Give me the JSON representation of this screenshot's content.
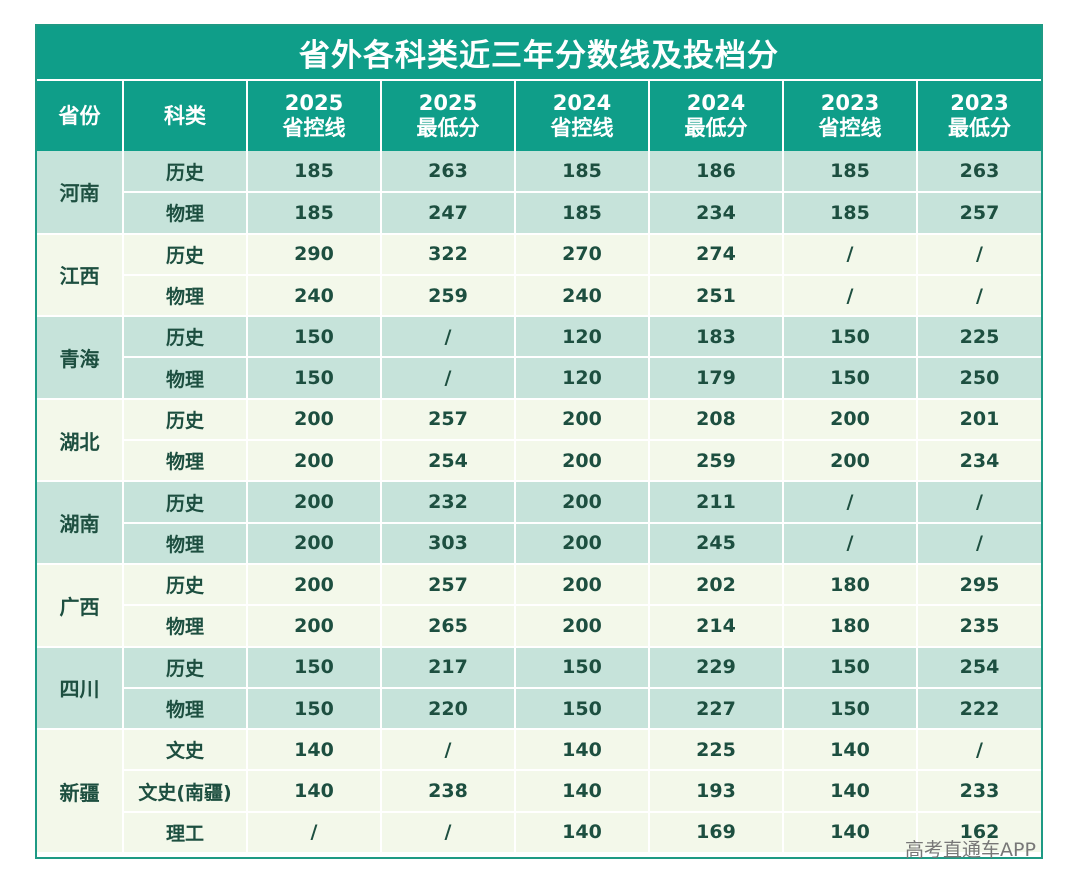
{
  "title": "省外各科类近三年分数线及投档分",
  "headers": [
    "省份",
    "科类",
    "2025\n省控线",
    "2025\n最低分",
    "2024\n省控线",
    "2024\n最低分",
    "2023\n省控线",
    "2023\n最低分"
  ],
  "groups": [
    {
      "province": "河南",
      "rows": [
        {
          "subject": "历史",
          "values": [
            "185",
            "263",
            "185",
            "186",
            "185",
            "263"
          ]
        },
        {
          "subject": "物理",
          "values": [
            "185",
            "247",
            "185",
            "234",
            "185",
            "257"
          ]
        }
      ]
    },
    {
      "province": "江西",
      "rows": [
        {
          "subject": "历史",
          "values": [
            "290",
            "322",
            "270",
            "274",
            "/",
            "/"
          ]
        },
        {
          "subject": "物理",
          "values": [
            "240",
            "259",
            "240",
            "251",
            "/",
            "/"
          ]
        }
      ]
    },
    {
      "province": "青海",
      "rows": [
        {
          "subject": "历史",
          "values": [
            "150",
            "/",
            "120",
            "183",
            "150",
            "225"
          ]
        },
        {
          "subject": "物理",
          "values": [
            "150",
            "/",
            "120",
            "179",
            "150",
            "250"
          ]
        }
      ]
    },
    {
      "province": "湖北",
      "rows": [
        {
          "subject": "历史",
          "values": [
            "200",
            "257",
            "200",
            "208",
            "200",
            "201"
          ]
        },
        {
          "subject": "物理",
          "values": [
            "200",
            "254",
            "200",
            "259",
            "200",
            "234"
          ]
        }
      ]
    },
    {
      "province": "湖南",
      "rows": [
        {
          "subject": "历史",
          "values": [
            "200",
            "232",
            "200",
            "211",
            "/",
            "/"
          ]
        },
        {
          "subject": "物理",
          "values": [
            "200",
            "303",
            "200",
            "245",
            "/",
            "/"
          ]
        }
      ]
    },
    {
      "province": "广西",
      "rows": [
        {
          "subject": "历史",
          "values": [
            "200",
            "257",
            "200",
            "202",
            "180",
            "295"
          ]
        },
        {
          "subject": "物理",
          "values": [
            "200",
            "265",
            "200",
            "214",
            "180",
            "235"
          ]
        }
      ]
    },
    {
      "province": "四川",
      "rows": [
        {
          "subject": "历史",
          "values": [
            "150",
            "217",
            "150",
            "229",
            "150",
            "254"
          ]
        },
        {
          "subject": "物理",
          "values": [
            "150",
            "220",
            "150",
            "227",
            "150",
            "222"
          ]
        }
      ]
    },
    {
      "province": "新疆",
      "rows": [
        {
          "subject": "文史",
          "values": [
            "140",
            "/",
            "140",
            "225",
            "140",
            "/"
          ]
        },
        {
          "subject": "文史(南疆)",
          "values": [
            "140",
            "238",
            "140",
            "193",
            "140",
            "233"
          ]
        },
        {
          "subject": "理工",
          "values": [
            "/",
            "/",
            "140",
            "169",
            "140",
            "162"
          ]
        }
      ]
    }
  ],
  "watermark": "高考直通车APP",
  "colors": {
    "header_bg": "#0f9e89",
    "row_dark": "#c6e3da",
    "row_light": "#f3f8ea",
    "text": "#1d4f40"
  }
}
